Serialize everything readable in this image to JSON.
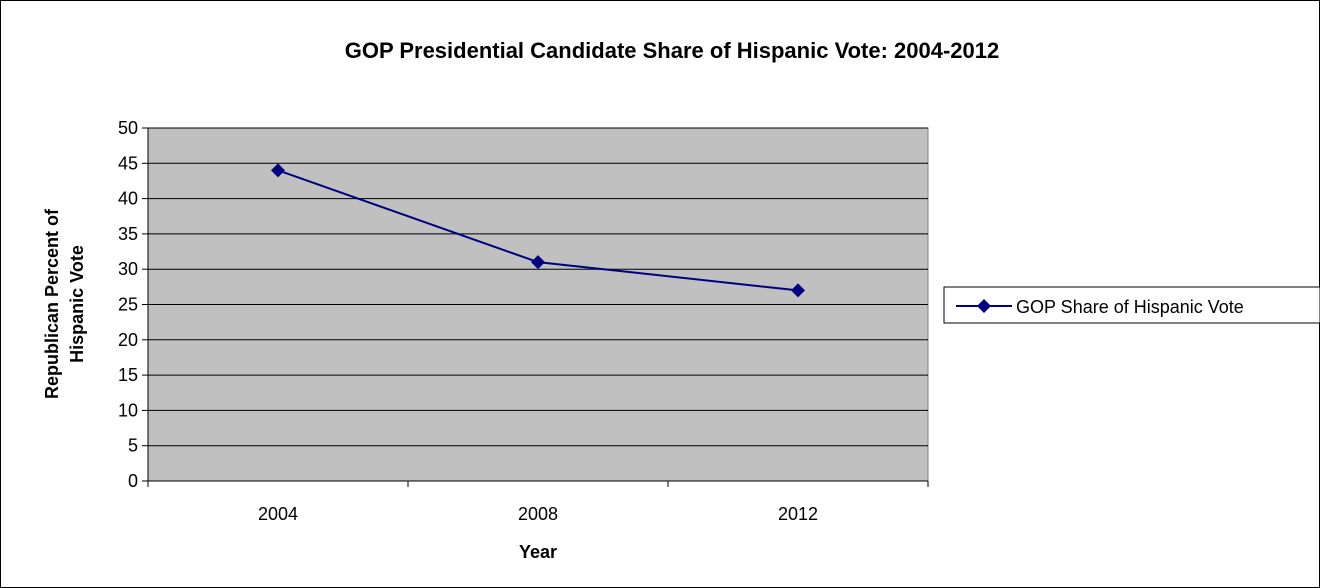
{
  "chart_data": {
    "type": "line",
    "title": "GOP Presidential Candidate Share of Hispanic Vote: 2004-2012",
    "xlabel": "Year",
    "ylabel_lines": [
      "Republican Percent of",
      "Hispanic Vote"
    ],
    "categories": [
      "2004",
      "2008",
      "2012"
    ],
    "series": [
      {
        "name": "GOP Share of Hispanic Vote",
        "values": [
          44,
          31,
          27
        ],
        "color": "#000080",
        "marker": "diamond"
      }
    ],
    "ylim": [
      0,
      50
    ],
    "yticks": [
      0,
      5,
      10,
      15,
      20,
      25,
      30,
      35,
      40,
      45,
      50
    ],
    "grid": true,
    "plot_background": "#c0c0c0",
    "legend_position": "right"
  }
}
